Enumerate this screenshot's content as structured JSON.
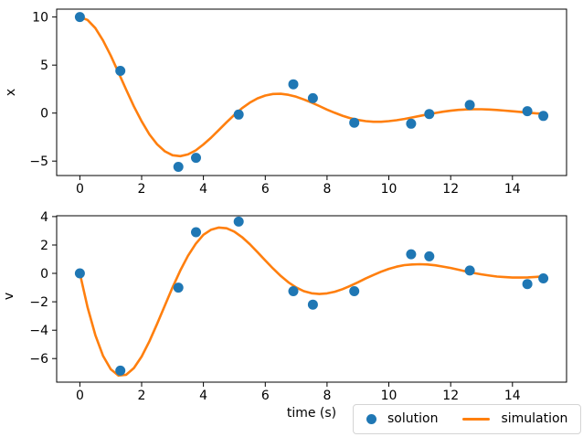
{
  "colors": {
    "axis": "#000000",
    "text": "#000000",
    "background": "#ffffff",
    "legend_border": "#d4d4d4",
    "solution": "#1f77b4",
    "simulation": "#ff7f0e"
  },
  "legend": {
    "labels": [
      "solution",
      "simulation"
    ],
    "position": "below axes, lower right"
  },
  "chart_data": [
    {
      "type": "scatter",
      "subtype": "scatter points with overlaid line",
      "title": "",
      "xlabel": "",
      "ylabel": "x",
      "xlim": [
        -0.75,
        15.75
      ],
      "ylim": [
        -6.5,
        10.82
      ],
      "xticks": [
        0,
        2,
        4,
        6,
        8,
        10,
        12,
        14
      ],
      "yticks": [
        10,
        5,
        0,
        -5
      ],
      "grid": false,
      "series": [
        {
          "name": "solution",
          "type": "scatter",
          "color": "#1f77b4",
          "x": [
            0.0,
            1.31,
            3.19,
            3.76,
            5.14,
            6.91,
            7.54,
            8.88,
            10.72,
            11.31,
            12.62,
            14.48,
            15.0
          ],
          "y": [
            10.0,
            4.4,
            -5.6,
            -4.65,
            -0.15,
            3.0,
            1.55,
            -1.0,
            -1.1,
            -0.1,
            0.85,
            0.2,
            -0.3
          ]
        },
        {
          "name": "simulation",
          "type": "line",
          "color": "#ff7f0e",
          "x": [
            0,
            0.25,
            0.5,
            0.75,
            1,
            1.25,
            1.5,
            1.75,
            2,
            2.25,
            2.5,
            2.75,
            3,
            3.25,
            3.5,
            3.75,
            4,
            4.25,
            4.5,
            4.75,
            5,
            5.25,
            5.5,
            5.75,
            6,
            6.25,
            6.5,
            6.75,
            7,
            7.25,
            7.5,
            7.75,
            8,
            8.25,
            8.5,
            8.75,
            9,
            9.25,
            9.5,
            9.75,
            10,
            10.25,
            10.5,
            10.75,
            11,
            11.25,
            11.5,
            11.75,
            12,
            12.25,
            12.5,
            12.75,
            13,
            13.25,
            13.5,
            13.75,
            14,
            14.25,
            14.5,
            14.75,
            15
          ],
          "y": [
            10.0,
            9.7,
            8.85,
            7.57,
            5.99,
            4.23,
            2.44,
            0.7,
            -0.86,
            -2.22,
            -3.25,
            -3.98,
            -4.39,
            -4.48,
            -4.3,
            -3.88,
            -3.26,
            -2.55,
            -1.76,
            -0.95,
            -0.18,
            0.51,
            1.08,
            1.53,
            1.83,
            1.99,
            2.01,
            1.9,
            1.7,
            1.42,
            1.09,
            0.73,
            0.36,
            0.03,
            -0.28,
            -0.53,
            -0.71,
            -0.84,
            -0.9,
            -0.9,
            -0.84,
            -0.74,
            -0.61,
            -0.46,
            -0.3,
            -0.14,
            0.01,
            0.14,
            0.25,
            0.33,
            0.38,
            0.4,
            0.4,
            0.37,
            0.32,
            0.26,
            0.19,
            0.12,
            0.05,
            -0.02,
            -0.07
          ]
        }
      ]
    },
    {
      "type": "scatter",
      "subtype": "scatter points with overlaid line",
      "title": "",
      "xlabel": "time (s)",
      "ylabel": "v",
      "xlim": [
        -0.75,
        15.75
      ],
      "ylim": [
        -7.66,
        4.06
      ],
      "xticks": [
        0,
        2,
        4,
        6,
        8,
        10,
        12,
        14
      ],
      "yticks": [
        4,
        2,
        0,
        -2,
        -4,
        -6
      ],
      "grid": false,
      "series": [
        {
          "name": "solution",
          "type": "scatter",
          "color": "#1f77b4",
          "x": [
            0.0,
            1.31,
            3.19,
            3.76,
            5.14,
            6.91,
            7.54,
            8.88,
            10.72,
            11.31,
            12.62,
            14.48,
            15.0
          ],
          "y": [
            0.0,
            -6.85,
            -1.0,
            2.9,
            3.65,
            -1.25,
            -2.2,
            -1.25,
            1.35,
            1.2,
            0.2,
            -0.75,
            -0.35
          ]
        },
        {
          "name": "simulation",
          "type": "line",
          "color": "#ff7f0e",
          "x": [
            0,
            0.25,
            0.5,
            0.75,
            1,
            1.25,
            1.5,
            1.75,
            2,
            2.25,
            2.5,
            2.75,
            3,
            3.25,
            3.5,
            3.75,
            4,
            4.25,
            4.5,
            4.75,
            5,
            5.25,
            5.5,
            5.75,
            6,
            6.25,
            6.5,
            6.75,
            7,
            7.25,
            7.5,
            7.75,
            8,
            8.25,
            8.5,
            8.75,
            9,
            9.25,
            9.5,
            9.75,
            10,
            10.25,
            10.5,
            10.75,
            11,
            11.25,
            11.5,
            11.75,
            12,
            12.25,
            12.5,
            12.75,
            13,
            13.25,
            13.5,
            13.75,
            14,
            14.25,
            14.5,
            14.75,
            15
          ],
          "y": [
            0.0,
            -2.38,
            -4.34,
            -5.8,
            -6.75,
            -7.19,
            -7.14,
            -6.67,
            -5.86,
            -4.78,
            -3.56,
            -2.27,
            -0.99,
            0.2,
            1.24,
            2.08,
            2.72,
            3.08,
            3.23,
            3.18,
            2.94,
            2.55,
            2.06,
            1.5,
            0.91,
            0.35,
            -0.18,
            -0.63,
            -0.99,
            -1.25,
            -1.4,
            -1.45,
            -1.41,
            -1.29,
            -1.11,
            -0.88,
            -0.63,
            -0.36,
            -0.11,
            0.12,
            0.32,
            0.47,
            0.58,
            0.63,
            0.65,
            0.63,
            0.57,
            0.48,
            0.38,
            0.26,
            0.14,
            0.03,
            -0.07,
            -0.15,
            -0.22,
            -0.26,
            -0.29,
            -0.29,
            -0.28,
            -0.25,
            -0.21
          ]
        }
      ]
    }
  ]
}
